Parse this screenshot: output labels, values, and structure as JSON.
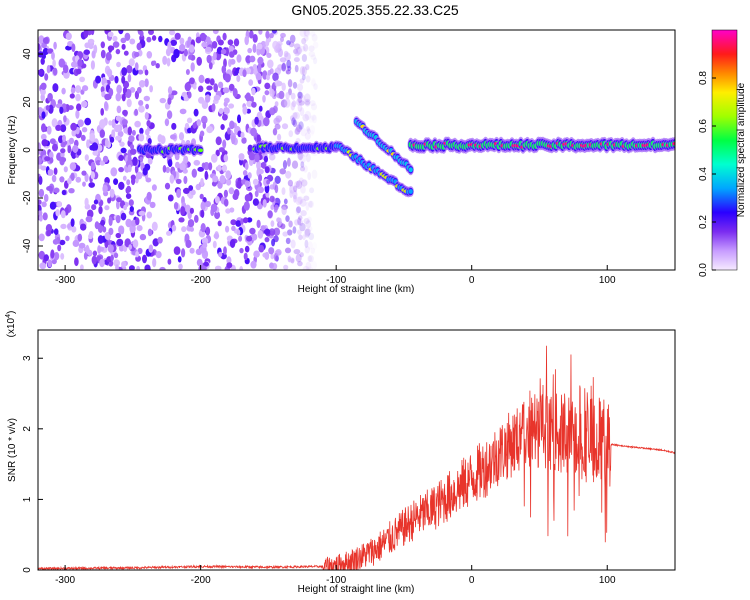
{
  "title": "GN05.2025.355.22.33.C25",
  "colors": {
    "snr_line": "#e8342b",
    "colormap": [
      "#f2e6ff",
      "#c79cff",
      "#8a2be2",
      "#2a00ff",
      "#00c8ff",
      "#00ff88",
      "#a0ff00",
      "#ffff00",
      "#ff8800",
      "#ff1a1a",
      "#ff00c8"
    ]
  },
  "chart_data": [
    {
      "type": "heatmap",
      "xlabel": "Height of straight line (km)",
      "ylabel": "Frequency (Hz)",
      "xlim": [
        -320,
        150
      ],
      "ylim": [
        -50,
        50
      ],
      "x_ticks": [
        -300,
        -200,
        -100,
        0,
        100
      ],
      "y_ticks": [
        -40,
        -20,
        0,
        20,
        40
      ],
      "colorbar": {
        "label": "Normalized spectral amplitude",
        "range": [
          0.0,
          1.0
        ],
        "ticks": [
          "0.0",
          "0.2",
          "0.4",
          "0.6",
          "0.8"
        ],
        "tick_values": [
          0.0,
          0.2,
          0.4,
          0.6,
          0.8
        ]
      },
      "features": [
        {
          "segment": "scattered noise",
          "x_range": [
            -320,
            -115
          ],
          "freq_range": [
            -50,
            50
          ],
          "amplitude": 0.12
        },
        {
          "segment": "tone near 0 Hz",
          "x_range": [
            -245,
            -200
          ],
          "freq": 0,
          "amplitude": 0.35
        },
        {
          "segment": "tone near 0 Hz",
          "x_range": [
            -160,
            -100
          ],
          "freq": 1,
          "amplitude": 0.35
        },
        {
          "segment": "downward sweep",
          "x_range": [
            -100,
            -45
          ],
          "freq_start": 2,
          "freq_end": -18,
          "amplitude": 0.45
        },
        {
          "segment": "upper branch",
          "x_range": [
            -85,
            -45
          ],
          "freq_start": 12,
          "freq_end": -8,
          "amplitude": 0.5
        },
        {
          "segment": "steady tone",
          "x_range": [
            -45,
            150
          ],
          "freq": 2,
          "amplitude": 0.7
        }
      ]
    },
    {
      "type": "line",
      "xlabel": "Height of straight line (km)",
      "ylabel": "SNR (10 * v/v)",
      "y_multiplier": "(x10",
      "y_multiplier_exp": "4",
      "xlim": [
        -320,
        150
      ],
      "ylim": [
        0,
        3.4
      ],
      "x_ticks": [
        -300,
        -200,
        -100,
        0,
        100
      ],
      "y_ticks": [
        0,
        1,
        2,
        3
      ],
      "series": [
        {
          "x": [
            -320,
            -250,
            -200,
            -150,
            -110,
            -100,
            -90,
            -80,
            -70,
            -60,
            -50,
            -40,
            -30,
            -20,
            -10,
            0,
            10,
            20,
            30,
            40,
            50,
            60,
            70,
            80,
            90,
            100,
            103,
            110,
            120,
            130,
            140,
            150
          ],
          "y": [
            0.02,
            0.03,
            0.05,
            0.04,
            0.05,
            0.07,
            0.12,
            0.2,
            0.3,
            0.45,
            0.6,
            0.75,
            0.85,
            1.0,
            1.15,
            1.3,
            1.45,
            1.65,
            1.8,
            1.9,
            2.0,
            1.95,
            1.9,
            1.85,
            1.85,
            1.8,
            1.78,
            1.76,
            1.74,
            1.72,
            1.7,
            1.66
          ]
        }
      ]
    }
  ]
}
